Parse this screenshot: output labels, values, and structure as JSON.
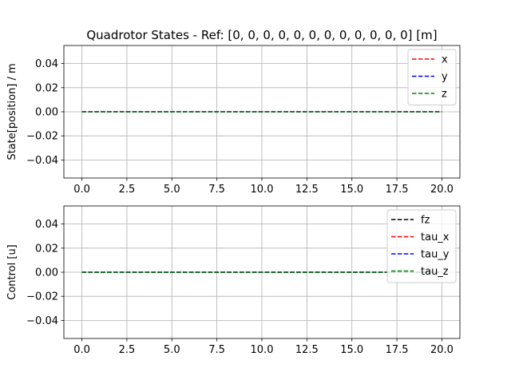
{
  "colors": {
    "background": "#ffffff",
    "grid": "#b0b0b0",
    "frame": "#000000",
    "legend_border": "#cccccc"
  },
  "chart_data": [
    {
      "type": "line",
      "title": "Quadrotor States - Ref: [0, 0, 0, 0, 0, 0, 0, 0, 0, 0, 0, 0] [m]",
      "xlabel": "",
      "ylabel": "State[position] / m",
      "xlim": [
        -1,
        21
      ],
      "ylim": [
        -0.055,
        0.055
      ],
      "xticks": [
        0.0,
        2.5,
        5.0,
        7.5,
        10.0,
        12.5,
        15.0,
        17.5,
        20.0
      ],
      "xtick_labels": [
        "0.0",
        "2.5",
        "5.0",
        "7.5",
        "10.0",
        "12.5",
        "15.0",
        "17.5",
        "20.0"
      ],
      "yticks": [
        0.04,
        0.02,
        0.0,
        -0.02,
        -0.04
      ],
      "ytick_labels": [
        "0.04",
        "0.02",
        "0.00",
        "−0.02",
        "−0.04"
      ],
      "grid": true,
      "legend_position": "top-right",
      "series": [
        {
          "name": "x",
          "color": "#ff0000",
          "style": "dashed",
          "x": [
            0,
            20
          ],
          "y": [
            0,
            0
          ]
        },
        {
          "name": "y",
          "color": "#0000ff",
          "style": "dashed",
          "x": [
            0,
            20
          ],
          "y": [
            0,
            0
          ]
        },
        {
          "name": "z",
          "color": "#008000",
          "style": "dashed",
          "x": [
            0,
            20
          ],
          "y": [
            0,
            0
          ]
        }
      ]
    },
    {
      "type": "line",
      "title": "",
      "xlabel": "",
      "ylabel": "Control [u]",
      "xlim": [
        -1,
        21
      ],
      "ylim": [
        -0.055,
        0.055
      ],
      "xticks": [
        0.0,
        2.5,
        5.0,
        7.5,
        10.0,
        12.5,
        15.0,
        17.5,
        20.0
      ],
      "xtick_labels": [
        "0.0",
        "2.5",
        "5.0",
        "7.5",
        "10.0",
        "12.5",
        "15.0",
        "17.5",
        "20.0"
      ],
      "yticks": [
        0.04,
        0.02,
        0.0,
        -0.02,
        -0.04
      ],
      "ytick_labels": [
        "0.04",
        "0.02",
        "0.00",
        "−0.02",
        "−0.04"
      ],
      "grid": true,
      "legend_position": "top-right",
      "series": [
        {
          "name": "fz",
          "color": "#000000",
          "style": "dashed",
          "x": [
            0,
            20
          ],
          "y": [
            0,
            0
          ]
        },
        {
          "name": "tau_x",
          "color": "#ff0000",
          "style": "dashed",
          "x": [
            0,
            20
          ],
          "y": [
            0,
            0
          ]
        },
        {
          "name": "tau_y",
          "color": "#0000ff",
          "style": "dashed",
          "x": [
            0,
            20
          ],
          "y": [
            0,
            0
          ]
        },
        {
          "name": "tau_z",
          "color": "#008000",
          "style": "dashed",
          "x": [
            0,
            20
          ],
          "y": [
            0,
            0
          ]
        }
      ]
    }
  ]
}
